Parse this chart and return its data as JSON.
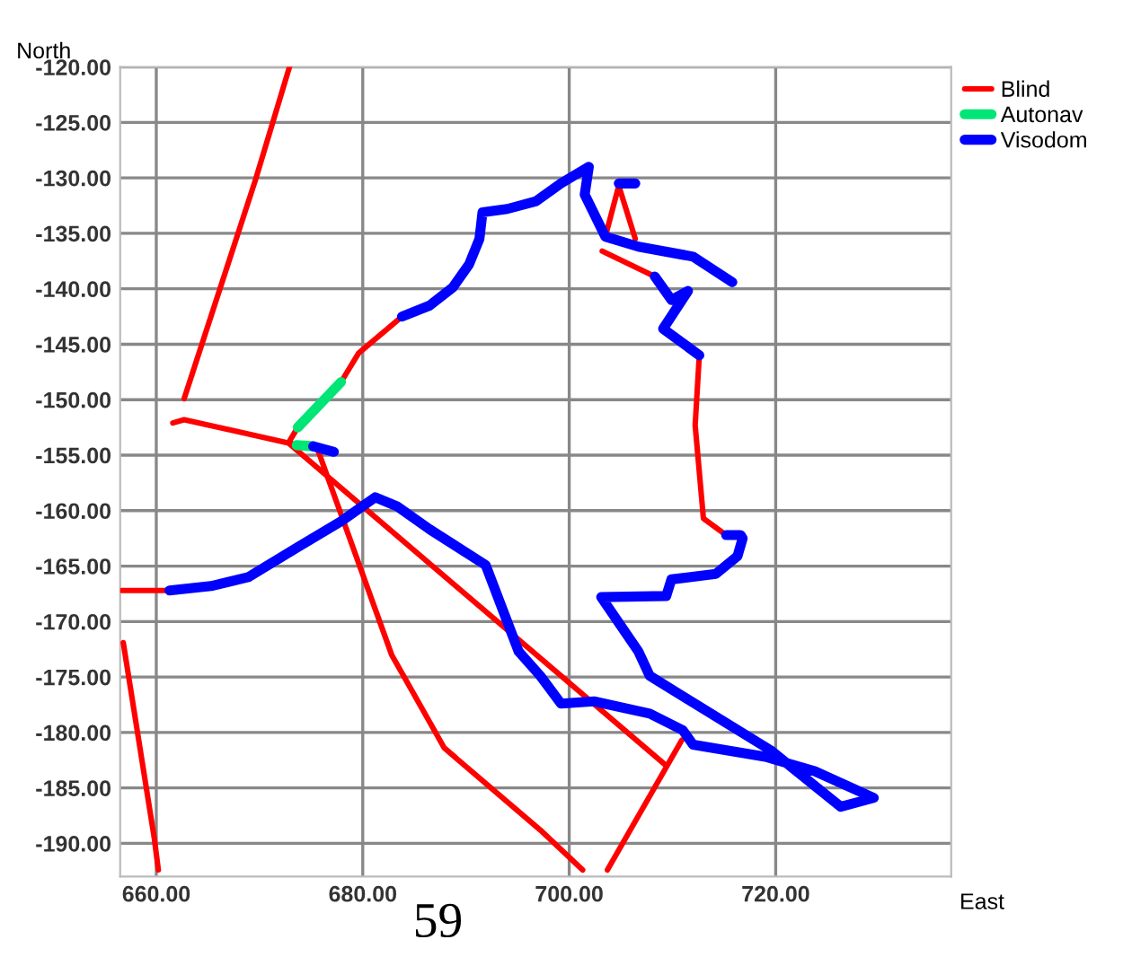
{
  "chart_data": {
    "type": "line",
    "xlabel": "East",
    "ylabel": "North",
    "xlim": [
      656.5,
      737
    ],
    "ylim": [
      -193,
      -120
    ],
    "xticks": [
      {
        "value": 660,
        "label": "660.00"
      },
      {
        "value": 680,
        "label": "680.00"
      },
      {
        "value": 700,
        "label": "700.00"
      },
      {
        "value": 720,
        "label": "720.00"
      }
    ],
    "yticks": [
      {
        "value": -120,
        "label": "-120.00"
      },
      {
        "value": -125,
        "label": "-125.00"
      },
      {
        "value": -130,
        "label": "-130.00"
      },
      {
        "value": -135,
        "label": "-135.00"
      },
      {
        "value": -140,
        "label": "-140.00"
      },
      {
        "value": -145,
        "label": "-145.00"
      },
      {
        "value": -150,
        "label": "-150.00"
      },
      {
        "value": -155,
        "label": "-155.00"
      },
      {
        "value": -160,
        "label": "-160.00"
      },
      {
        "value": -165,
        "label": "-165.00"
      },
      {
        "value": -170,
        "label": "-170.00"
      },
      {
        "value": -175,
        "label": "-175.00"
      },
      {
        "value": -180,
        "label": "-180.00"
      },
      {
        "value": -185,
        "label": "-185.00"
      },
      {
        "value": -190,
        "label": "-190.00"
      }
    ],
    "grid": true,
    "legend": "top right",
    "marker": "none",
    "line_style": "solid",
    "annotations": [
      "59"
    ],
    "series": [
      {
        "name": "Blind",
        "color": "#ff0000",
        "x": [
          672.9,
          669.6,
          662.7,
          null,
          661.6,
          662.7,
          672.8,
          709.4,
          null,
          672.8,
          673.7,
          null,
          677.9,
          679.6,
          683.8,
          null,
          672.8,
          675.6,
          682.8,
          687.9,
          697.2,
          701.3,
          null,
          656.65,
          661.3,
          null,
          656.8,
          659.8,
          660.2,
          null,
          703.7,
          710.9,
          null,
          703.2,
          708.3,
          null,
          703.5,
          704.8,
          706.4,
          null,
          712.6,
          712.2,
          713.0,
          715.2
        ],
        "values": [
          -120.0,
          -130.2,
          -149.9,
          null,
          -152.1,
          -151.8,
          -153.9,
          -183.0,
          null,
          -153.9,
          -152.5,
          null,
          -148.4,
          -145.8,
          -142.5,
          null,
          -153.9,
          -154.4,
          -173.0,
          -181.4,
          -188.8,
          -192.4,
          null,
          -167.2,
          -167.2,
          null,
          -171.9,
          -189.5,
          -192.4,
          null,
          -192.4,
          -180.7,
          null,
          -136.6,
          -138.9,
          null,
          -135.3,
          -130.7,
          -135.5,
          null,
          -146.0,
          -152.3,
          -160.7,
          -162.2
        ]
      },
      {
        "name": "Autonav",
        "color": "#00e676",
        "x": [
          673.7,
          677.9,
          null,
          673.6,
          675.2
        ],
        "values": [
          -152.5,
          -148.4,
          null,
          -154.1,
          -154.2
        ]
      },
      {
        "name": "Visodom",
        "color": "#0000ff",
        "x": [
          675.2,
          677.2,
          null,
          661.28,
          665.3,
          668.9,
          673.7,
          678.0,
          681.2,
          683.3,
          686.5,
          691.9,
          695.1,
          697.2,
          699.2,
          702.4,
          707.8,
          711.0,
          712.0,
          719.0,
          723.8,
          729.5,
          726.3,
          719.5,
          707.8,
          706.7,
          703.1,
          709.4,
          709.9,
          714.2,
          716.3,
          716.8,
          716.6,
          715.2,
          null,
          683.8,
          686.5,
          688.7,
          690.3,
          691.3,
          691.6,
          694.0,
          696.8,
          699.2,
          701.9,
          701.5,
          703.5,
          706.7,
          712.0,
          715.8,
          null,
          708.3,
          709.9,
          711.5,
          709.1,
          712.6,
          null,
          704.8,
          706.4
        ],
        "values": [
          -154.2,
          -154.7,
          null,
          -167.2,
          -166.8,
          -166.0,
          -163.3,
          -160.9,
          -158.8,
          -159.6,
          -161.7,
          -164.9,
          -172.7,
          -174.9,
          -177.4,
          -177.2,
          -178.3,
          -179.8,
          -181.1,
          -182.2,
          -183.5,
          -185.9,
          -186.7,
          -181.6,
          -174.9,
          -172.7,
          -167.8,
          -167.7,
          -166.2,
          -165.7,
          -164.1,
          -162.5,
          -162.2,
          -162.2,
          null,
          -142.5,
          -141.5,
          -139.9,
          -137.8,
          -135.5,
          -133.1,
          -132.8,
          -132.1,
          -130.5,
          -129.0,
          -131.5,
          -135.3,
          -136.2,
          -137.1,
          -139.4,
          null,
          -138.9,
          -141.0,
          -140.2,
          -143.6,
          -146.0,
          null,
          -130.5,
          -130.5
        ]
      }
    ]
  }
}
